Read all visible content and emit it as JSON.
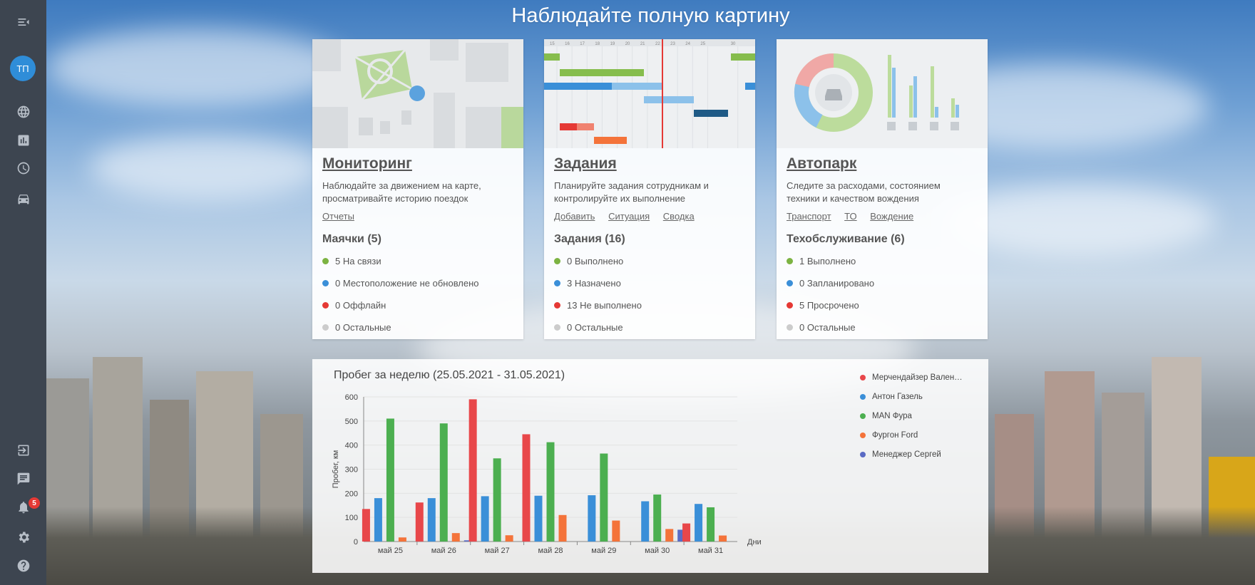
{
  "headline": "Наблюдайте полную картину",
  "user": {
    "initials": "ТП"
  },
  "notifications": {
    "count": "5"
  },
  "sidebar": {
    "icons": [
      "menu-collapse-icon",
      "globe-icon",
      "bar-chart-icon",
      "clock-icon",
      "car-icon",
      "logout-icon",
      "chat-icon",
      "bell-icon",
      "gear-icon",
      "help-icon"
    ]
  },
  "colors": {
    "green": "#7cb342",
    "blue": "#3a8fd8",
    "red": "#e53935",
    "gray": "#cccccc",
    "sidebar": "#3d4550"
  },
  "cards": [
    {
      "title": "Мониторинг",
      "desc_line1": "Наблюдайте за движением на карте,",
      "desc_line2": "просматривайте историю поездок",
      "links": [
        "Отчеты"
      ],
      "stat_title": "Маячки (5)",
      "stats": [
        "5 На связи",
        "0 Местоположение не обновлено",
        "0 Оффлайн",
        "0 Остальные"
      ]
    },
    {
      "title": "Задания",
      "desc_line1": "Планируйте задания сотрудникам и",
      "desc_line2": "контролируйте их выполнение",
      "links": [
        "Добавить",
        "Ситуация",
        "Сводка"
      ],
      "stat_title": "Задания (16)",
      "stats": [
        "0 Выполнено",
        "3 Назначено",
        "13 Не выполнено",
        "0 Остальные"
      ]
    },
    {
      "title": "Автопарк",
      "desc_line1": "Следите за расходами, состоянием",
      "desc_line2": "техники и качеством вождения",
      "links": [
        "Транспорт",
        "ТО",
        "Вождение"
      ],
      "stat_title": "Техобслуживание (6)",
      "stats": [
        "1 Выполнено",
        "0 Запланировано",
        "5 Просрочено",
        "0 Остальные"
      ]
    }
  ],
  "gantt_days": [
    "15",
    "16",
    "17",
    "18",
    "19",
    "20",
    "21",
    "22",
    "23",
    "24",
    "25",
    "30"
  ],
  "chart_data": {
    "type": "bar",
    "title": "Пробег за неделю (25.05.2021 - 31.05.2021)",
    "xlabel": "Дни",
    "ylabel": "Пробег, км",
    "ylim": [
      0,
      600
    ],
    "yticks": [
      "0",
      "100",
      "200",
      "300",
      "400",
      "500",
      "600"
    ],
    "categories": [
      "май 25",
      "май 26",
      "май 27",
      "май 28",
      "май 29",
      "май 30",
      "май 31"
    ],
    "series": [
      {
        "name": "Мерчендайзер Вален…",
        "color": "#e8474a",
        "values": [
          135,
          162,
          590,
          445,
          0,
          0,
          75
        ]
      },
      {
        "name": "Антон Газель",
        "color": "#3a8fd8",
        "values": [
          180,
          180,
          188,
          190,
          192,
          167,
          156
        ]
      },
      {
        "name": "MAN Фура",
        "color": "#4caf50",
        "values": [
          510,
          490,
          345,
          412,
          365,
          195,
          142
        ]
      },
      {
        "name": "Фургон Ford",
        "color": "#f4733a",
        "values": [
          17,
          35,
          26,
          110,
          87,
          52,
          25
        ]
      },
      {
        "name": "Менеджер Сергей",
        "color": "#5a6bc4",
        "values": [
          0,
          5,
          0,
          0,
          0,
          49,
          0
        ]
      }
    ]
  }
}
